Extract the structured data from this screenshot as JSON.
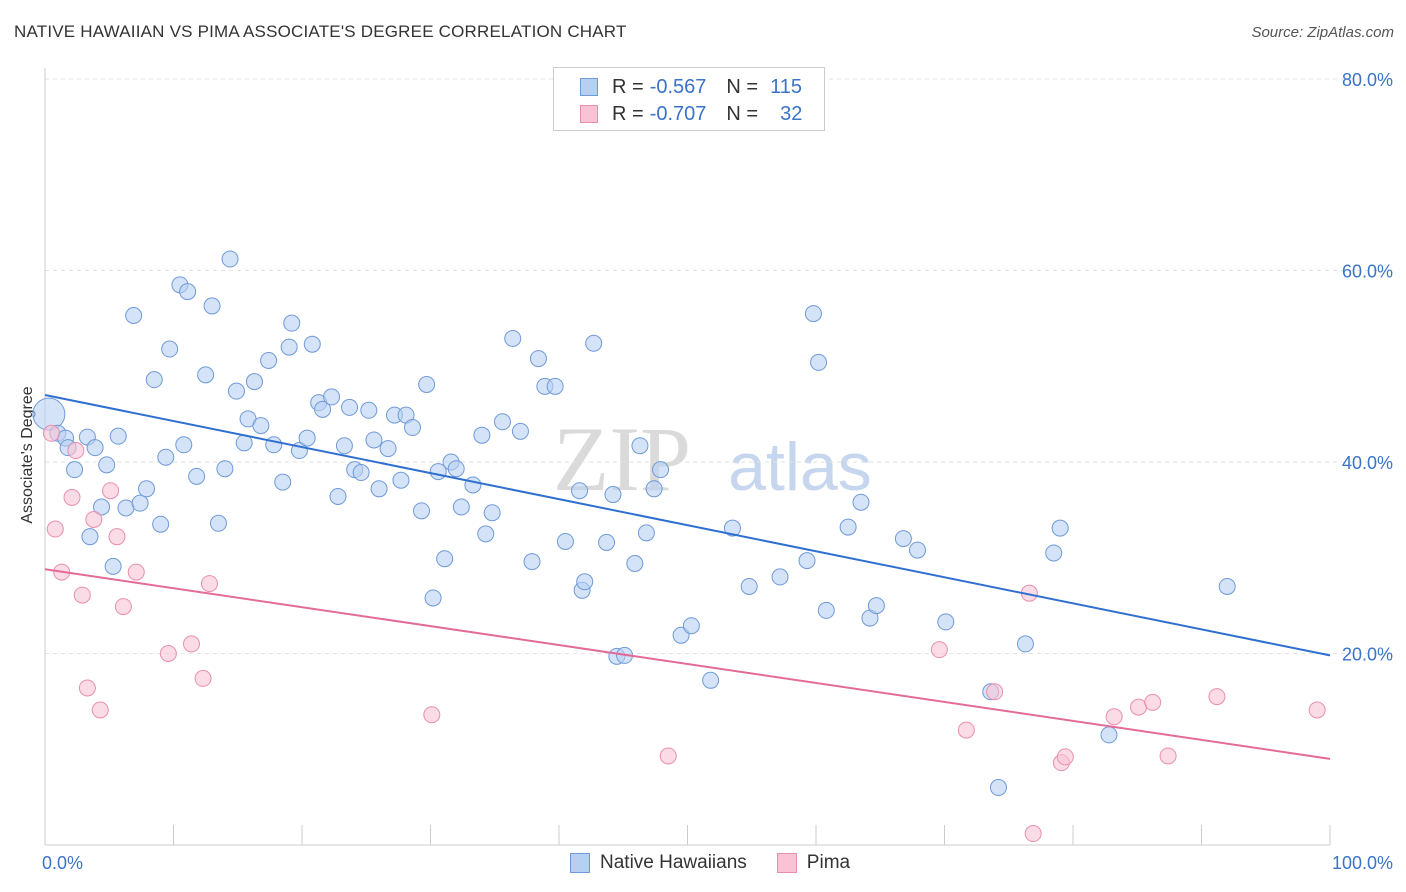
{
  "title": "NATIVE HAWAIIAN VS PIMA ASSOCIATE'S DEGREE CORRELATION CHART",
  "source": "Source: ZipAtlas.com",
  "watermark": {
    "zip": "ZIP",
    "atlas": "atlas"
  },
  "colors": {
    "blue": "#3b73c8",
    "blue_fill": "#b7d0f2",
    "blue_line": "#2f6fd0",
    "pink": "#e87aa0",
    "pink_fill": "#f9c3d5",
    "pink_line": "#e36b98",
    "tick_label": "#3b73c8"
  },
  "legend": {
    "items": [
      {
        "r_label": "R =",
        "r_value": "-0.567",
        "n_label": "N =",
        "n_value": "115"
      },
      {
        "r_label": "R =",
        "r_value": "-0.707",
        "n_label": "N =",
        "n_value": "32"
      }
    ]
  },
  "bottom_legend": [
    "Native Hawaiians",
    "Pima"
  ],
  "chart_data": {
    "type": "scatter",
    "xlabel": "",
    "ylabel": "Associate's Degree",
    "xlim": [
      0,
      100
    ],
    "ylim": [
      0,
      80
    ],
    "x_tick_labels": [
      "0.0%",
      "100.0%"
    ],
    "y_tick_values": [
      20,
      40,
      60,
      80
    ],
    "y_tick_labels": [
      "20.0%",
      "40.0%",
      "60.0%",
      "80.0%"
    ],
    "grid": true,
    "legend_position": "top-center",
    "series": [
      {
        "name": "Native Hawaiians",
        "trend": {
          "x0": 0,
          "y0": 47.0,
          "x1": 100,
          "y1": 19.8
        },
        "points": [
          [
            0.3,
            45.0
          ],
          [
            1.0,
            43.0
          ],
          [
            1.6,
            42.5
          ],
          [
            1.8,
            41.5
          ],
          [
            2.3,
            39.2
          ],
          [
            3.3,
            42.6
          ],
          [
            3.5,
            32.2
          ],
          [
            3.9,
            41.5
          ],
          [
            4.4,
            35.3
          ],
          [
            4.8,
            39.7
          ],
          [
            5.3,
            29.1
          ],
          [
            5.7,
            42.7
          ],
          [
            6.3,
            35.2
          ],
          [
            6.9,
            55.3
          ],
          [
            7.4,
            35.7
          ],
          [
            7.9,
            37.2
          ],
          [
            8.5,
            48.6
          ],
          [
            9.0,
            33.5
          ],
          [
            9.4,
            40.5
          ],
          [
            9.7,
            51.8
          ],
          [
            10.5,
            58.5
          ],
          [
            10.8,
            41.8
          ],
          [
            11.1,
            57.8
          ],
          [
            11.8,
            38.5
          ],
          [
            12.5,
            49.1
          ],
          [
            13.0,
            56.3
          ],
          [
            13.5,
            33.6
          ],
          [
            14.0,
            39.3
          ],
          [
            14.4,
            61.2
          ],
          [
            14.9,
            47.4
          ],
          [
            15.5,
            42.0
          ],
          [
            15.8,
            44.5
          ],
          [
            16.3,
            48.4
          ],
          [
            16.8,
            43.8
          ],
          [
            17.4,
            50.6
          ],
          [
            17.8,
            41.8
          ],
          [
            18.5,
            37.9
          ],
          [
            19.0,
            52.0
          ],
          [
            19.2,
            54.5
          ],
          [
            19.8,
            41.2
          ],
          [
            20.4,
            42.5
          ],
          [
            20.8,
            52.3
          ],
          [
            21.3,
            46.2
          ],
          [
            21.6,
            45.5
          ],
          [
            22.3,
            46.8
          ],
          [
            22.8,
            36.4
          ],
          [
            23.3,
            41.7
          ],
          [
            23.7,
            45.7
          ],
          [
            24.1,
            39.2
          ],
          [
            24.6,
            38.9
          ],
          [
            25.2,
            45.4
          ],
          [
            25.6,
            42.3
          ],
          [
            26.0,
            37.2
          ],
          [
            26.7,
            41.4
          ],
          [
            27.2,
            44.9
          ],
          [
            27.7,
            38.1
          ],
          [
            28.1,
            44.9
          ],
          [
            28.6,
            43.6
          ],
          [
            29.3,
            34.9
          ],
          [
            29.7,
            48.1
          ],
          [
            30.2,
            25.8
          ],
          [
            30.6,
            39.0
          ],
          [
            31.1,
            29.9
          ],
          [
            31.6,
            40.0
          ],
          [
            32.0,
            39.3
          ],
          [
            32.4,
            35.3
          ],
          [
            33.3,
            37.6
          ],
          [
            34.0,
            42.8
          ],
          [
            34.3,
            32.5
          ],
          [
            34.8,
            34.7
          ],
          [
            35.6,
            44.2
          ],
          [
            36.4,
            52.9
          ],
          [
            37.0,
            43.2
          ],
          [
            37.9,
            29.6
          ],
          [
            38.4,
            50.8
          ],
          [
            38.9,
            47.9
          ],
          [
            39.7,
            47.9
          ],
          [
            40.5,
            31.7
          ],
          [
            41.6,
            37.0
          ],
          [
            41.8,
            26.6
          ],
          [
            42.0,
            27.5
          ],
          [
            42.7,
            52.4
          ],
          [
            43.7,
            31.6
          ],
          [
            44.2,
            36.6
          ],
          [
            44.5,
            19.7
          ],
          [
            45.1,
            19.8
          ],
          [
            45.9,
            29.4
          ],
          [
            46.3,
            41.7
          ],
          [
            46.8,
            32.6
          ],
          [
            47.4,
            37.2
          ],
          [
            47.9,
            39.2
          ],
          [
            49.5,
            21.9
          ],
          [
            50.3,
            22.9
          ],
          [
            51.8,
            17.2
          ],
          [
            53.5,
            33.1
          ],
          [
            54.8,
            27.0
          ],
          [
            57.2,
            28.0
          ],
          [
            59.3,
            29.7
          ],
          [
            59.8,
            55.5
          ],
          [
            60.2,
            50.4
          ],
          [
            60.8,
            24.5
          ],
          [
            62.5,
            33.2
          ],
          [
            63.5,
            35.8
          ],
          [
            64.2,
            23.7
          ],
          [
            64.7,
            25.0
          ],
          [
            66.8,
            32.0
          ],
          [
            67.9,
            30.8
          ],
          [
            70.1,
            23.3
          ],
          [
            73.6,
            16.0
          ],
          [
            74.2,
            6.0
          ],
          [
            76.3,
            21.0
          ],
          [
            78.5,
            30.5
          ],
          [
            79.0,
            33.1
          ],
          [
            82.8,
            11.5
          ],
          [
            92.0,
            27.0
          ]
        ]
      },
      {
        "name": "Pima",
        "trend": {
          "x0": 0,
          "y0": 28.8,
          "x1": 100,
          "y1": 9.0
        },
        "points": [
          [
            0.5,
            43.0
          ],
          [
            0.8,
            33.0
          ],
          [
            1.3,
            28.5
          ],
          [
            2.1,
            36.3
          ],
          [
            2.4,
            41.2
          ],
          [
            2.9,
            26.1
          ],
          [
            3.3,
            16.4
          ],
          [
            3.8,
            34.0
          ],
          [
            4.3,
            14.1
          ],
          [
            5.1,
            37.0
          ],
          [
            5.6,
            32.2
          ],
          [
            6.1,
            24.9
          ],
          [
            7.1,
            28.5
          ],
          [
            9.6,
            20.0
          ],
          [
            11.4,
            21.0
          ],
          [
            12.3,
            17.4
          ],
          [
            12.8,
            27.3
          ],
          [
            30.1,
            13.6
          ],
          [
            48.5,
            9.3
          ],
          [
            69.6,
            20.4
          ],
          [
            71.7,
            12.0
          ],
          [
            73.9,
            16.0
          ],
          [
            76.6,
            26.3
          ],
          [
            76.9,
            1.2
          ],
          [
            79.1,
            8.6
          ],
          [
            79.4,
            9.2
          ],
          [
            83.2,
            13.4
          ],
          [
            85.1,
            14.4
          ],
          [
            86.2,
            14.9
          ],
          [
            87.4,
            9.3
          ],
          [
            91.2,
            15.5
          ],
          [
            99.0,
            14.1
          ]
        ]
      }
    ]
  }
}
